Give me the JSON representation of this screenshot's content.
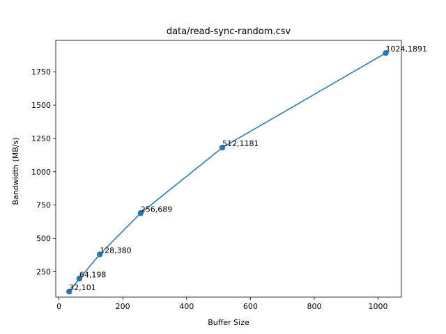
{
  "chart_data": {
    "type": "line",
    "title": "data/read-sync-random.csv",
    "xlabel": "Buffer Size",
    "ylabel": "Bandwidth (MB/s)",
    "xlim": [
      -10,
      1073
    ],
    "ylim": [
      59,
      1986
    ],
    "xticks": [
      0,
      200,
      400,
      600,
      800,
      1000
    ],
    "yticks": [
      250,
      500,
      750,
      1000,
      1250,
      1500,
      1750
    ],
    "grid": false,
    "color": "#1f77b4",
    "series": [
      {
        "x": [
          32,
          64,
          128,
          256,
          512,
          1024
        ],
        "y": [
          101,
          198,
          380,
          689,
          1181,
          1891
        ],
        "labels": [
          "32,101",
          "64,198",
          "128,380",
          "256,689",
          "512,1181",
          "1024,1891"
        ]
      }
    ]
  }
}
